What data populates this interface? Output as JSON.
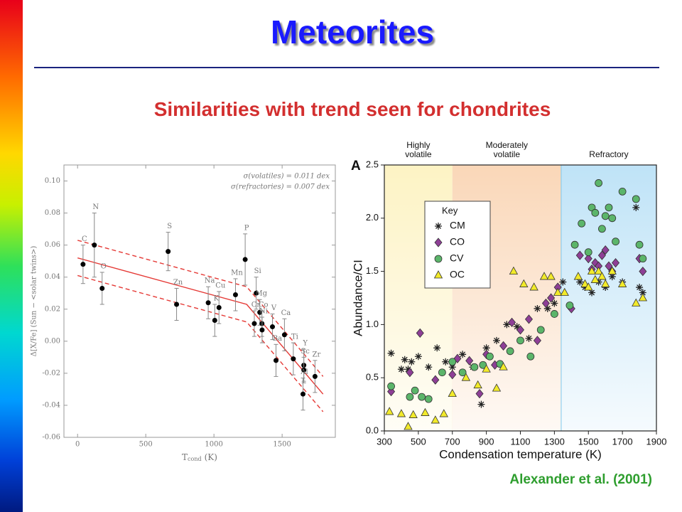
{
  "slide": {
    "title": "Meteorites",
    "subtitle": "Similarities with trend seen for chondrites",
    "citation": "Alexander et al. (2001)"
  },
  "chart_data": [
    {
      "type": "scatter",
      "xlabel": {
        "main": "T",
        "sub": "cond",
        "unit": "(K)"
      },
      "ylabel": "Δ[X/Fe] (Sun − <solar twins>)",
      "annotations": [
        "σ(volatiles) = 0.011 dex",
        "σ(refractories) = 0.007 dex"
      ],
      "labels": [
        "C",
        "N",
        "O",
        "S",
        "Zn",
        "Na",
        "K",
        "Cu",
        "Mn",
        "P",
        "Si",
        "Cr",
        "Mg",
        "Co",
        "Ni",
        "V",
        "Ca",
        "Ba",
        "Ti",
        "Y",
        "Sc",
        "Al",
        "Zr"
      ],
      "x": [
        40,
        123,
        180,
        664,
        726,
        958,
        1006,
        1037,
        1158,
        1229,
        1310,
        1296,
        1336,
        1352,
        1353,
        1429,
        1517,
        1455,
        1582,
        1659,
        1659,
        1653,
        1741
      ],
      "values": [
        0.048,
        0.06,
        0.033,
        0.056,
        0.023,
        0.024,
        0.013,
        0.021,
        0.029,
        0.051,
        0.03,
        0.011,
        0.018,
        0.011,
        0.007,
        0.009,
        0.004,
        -0.012,
        -0.011,
        -0.015,
        -0.018,
        -0.033,
        -0.022
      ],
      "errors": [
        0.012,
        0.02,
        0.01,
        0.012,
        0.01,
        0.01,
        0.01,
        0.01,
        0.01,
        0.016,
        0.01,
        0.008,
        0.008,
        0.008,
        0.008,
        0.008,
        0.01,
        0.01,
        0.01,
        0.01,
        0.008,
        0.01,
        0.01
      ],
      "color": "#000000",
      "lines": [
        {
          "style": "solid",
          "x": [
            0,
            1240,
            1800
          ],
          "values": [
            0.052,
            0.023,
            -0.033
          ]
        },
        {
          "style": "dashed",
          "x": [
            0,
            1240,
            1800
          ],
          "values": [
            0.063,
            0.034,
            -0.022
          ]
        },
        {
          "style": "dashed",
          "x": [
            0,
            1240,
            1800
          ],
          "values": [
            0.041,
            0.012,
            -0.044
          ]
        }
      ],
      "line_color": "#e53935",
      "xlim": [
        -100,
        1890
      ],
      "xticks": [
        0,
        500,
        1000,
        1500
      ],
      "ylim": [
        -0.06,
        0.11
      ],
      "yticks": [
        -0.06,
        -0.04,
        -0.02,
        {
          "value": 0,
          "label": "0.00"
        },
        0.02,
        0.04,
        0.06,
        0.08,
        {
          "value": 0.1,
          "label": "0.10"
        }
      ]
    },
    {
      "type": "scatter",
      "panel": "A",
      "xlabel": "Condensation temperature (K)",
      "ylabel": "Abundance/CI",
      "legend_title": "Key",
      "regions": [
        {
          "name": [
            "Highly",
            "volatile"
          ],
          "x0": 300,
          "x1": 700,
          "color": "#fdf3c4"
        },
        {
          "name": [
            "Moderately",
            "volatile"
          ],
          "x0": 700,
          "x1": 1340,
          "color": "#fad7b8"
        },
        {
          "name": [
            "Refractory"
          ],
          "x0": 1340,
          "x1": 1900,
          "color": "#bfe3f7"
        }
      ],
      "series": [
        {
          "name": "CM",
          "marker": "asterisk",
          "color": "#222222",
          "x": [
            340,
            400,
            420,
            440,
            460,
            500,
            560,
            610,
            660,
            700,
            760,
            820,
            870,
            900,
            960,
            1020,
            1080,
            1150,
            1200,
            1260,
            1300,
            1350,
            1450,
            1480,
            1520,
            1560,
            1600,
            1640,
            1700,
            1780,
            1800,
            1820
          ],
          "values": [
            0.73,
            0.58,
            0.67,
            0.58,
            0.65,
            0.7,
            0.6,
            0.78,
            0.65,
            0.6,
            0.72,
            0.6,
            0.25,
            0.78,
            0.85,
            1.0,
            0.98,
            0.87,
            1.15,
            1.15,
            1.2,
            1.4,
            1.4,
            1.35,
            1.3,
            1.4,
            1.35,
            1.45,
            1.4,
            2.1,
            1.35,
            1.3
          ]
        },
        {
          "name": "CO",
          "marker": "diamond",
          "color": "#8e3f96",
          "x": [
            340,
            450,
            510,
            600,
            700,
            730,
            800,
            860,
            900,
            950,
            1000,
            1050,
            1100,
            1150,
            1200,
            1250,
            1280,
            1320,
            1400,
            1450,
            1500,
            1520,
            1540,
            1560,
            1580,
            1600,
            1620,
            1640,
            1660,
            1800,
            1820
          ],
          "values": [
            0.37,
            0.55,
            0.92,
            0.48,
            0.53,
            0.68,
            0.66,
            0.35,
            0.72,
            0.62,
            0.8,
            1.02,
            0.95,
            1.05,
            0.85,
            1.2,
            1.25,
            1.35,
            1.15,
            1.65,
            1.62,
            1.52,
            1.58,
            1.55,
            1.65,
            1.7,
            1.55,
            1.5,
            1.58,
            1.62,
            1.5
          ]
        },
        {
          "name": "CV",
          "marker": "circle",
          "color": "#5bb56a",
          "x": [
            340,
            450,
            480,
            520,
            560,
            640,
            700,
            760,
            830,
            880,
            920,
            980,
            1040,
            1100,
            1160,
            1220,
            1300,
            1390,
            1420,
            1460,
            1500,
            1520,
            1540,
            1560,
            1580,
            1600,
            1620,
            1640,
            1660,
            1700,
            1780,
            1800,
            1820
          ],
          "values": [
            0.42,
            0.32,
            0.38,
            0.32,
            0.3,
            0.55,
            0.65,
            0.55,
            0.6,
            0.62,
            0.7,
            0.63,
            0.75,
            0.85,
            0.7,
            0.95,
            1.1,
            1.18,
            1.75,
            1.95,
            1.68,
            2.1,
            2.05,
            2.33,
            1.9,
            2.02,
            2.1,
            2.0,
            1.78,
            2.25,
            2.18,
            1.75,
            1.62
          ]
        },
        {
          "name": "OC",
          "marker": "triangle",
          "color": "#f2ea2a",
          "x": [
            330,
            400,
            440,
            470,
            540,
            600,
            650,
            700,
            780,
            850,
            900,
            960,
            1000,
            1060,
            1120,
            1180,
            1240,
            1280,
            1320,
            1360,
            1440,
            1480,
            1500,
            1520,
            1540,
            1560,
            1580,
            1600,
            1640,
            1700,
            1780,
            1820
          ],
          "values": [
            0.18,
            0.16,
            0.04,
            0.15,
            0.17,
            0.1,
            0.16,
            0.35,
            0.5,
            0.43,
            0.58,
            0.4,
            0.6,
            1.5,
            1.38,
            1.35,
            1.45,
            1.45,
            1.3,
            1.3,
            1.45,
            1.38,
            1.35,
            1.5,
            1.42,
            1.5,
            1.45,
            1.38,
            1.5,
            1.38,
            1.2,
            1.25
          ]
        }
      ],
      "xlim": [
        300,
        1900
      ],
      "xticks": [
        300,
        500,
        700,
        900,
        1100,
        1300,
        1500,
        1700,
        1900
      ],
      "ylim": [
        0,
        2.5
      ],
      "yticks": [
        {
          "value": 0,
          "label": "0.0"
        },
        0.5,
        {
          "value": 1,
          "label": "1.0"
        },
        1.5,
        {
          "value": 2,
          "label": "2.0"
        },
        2.5
      ]
    }
  ]
}
